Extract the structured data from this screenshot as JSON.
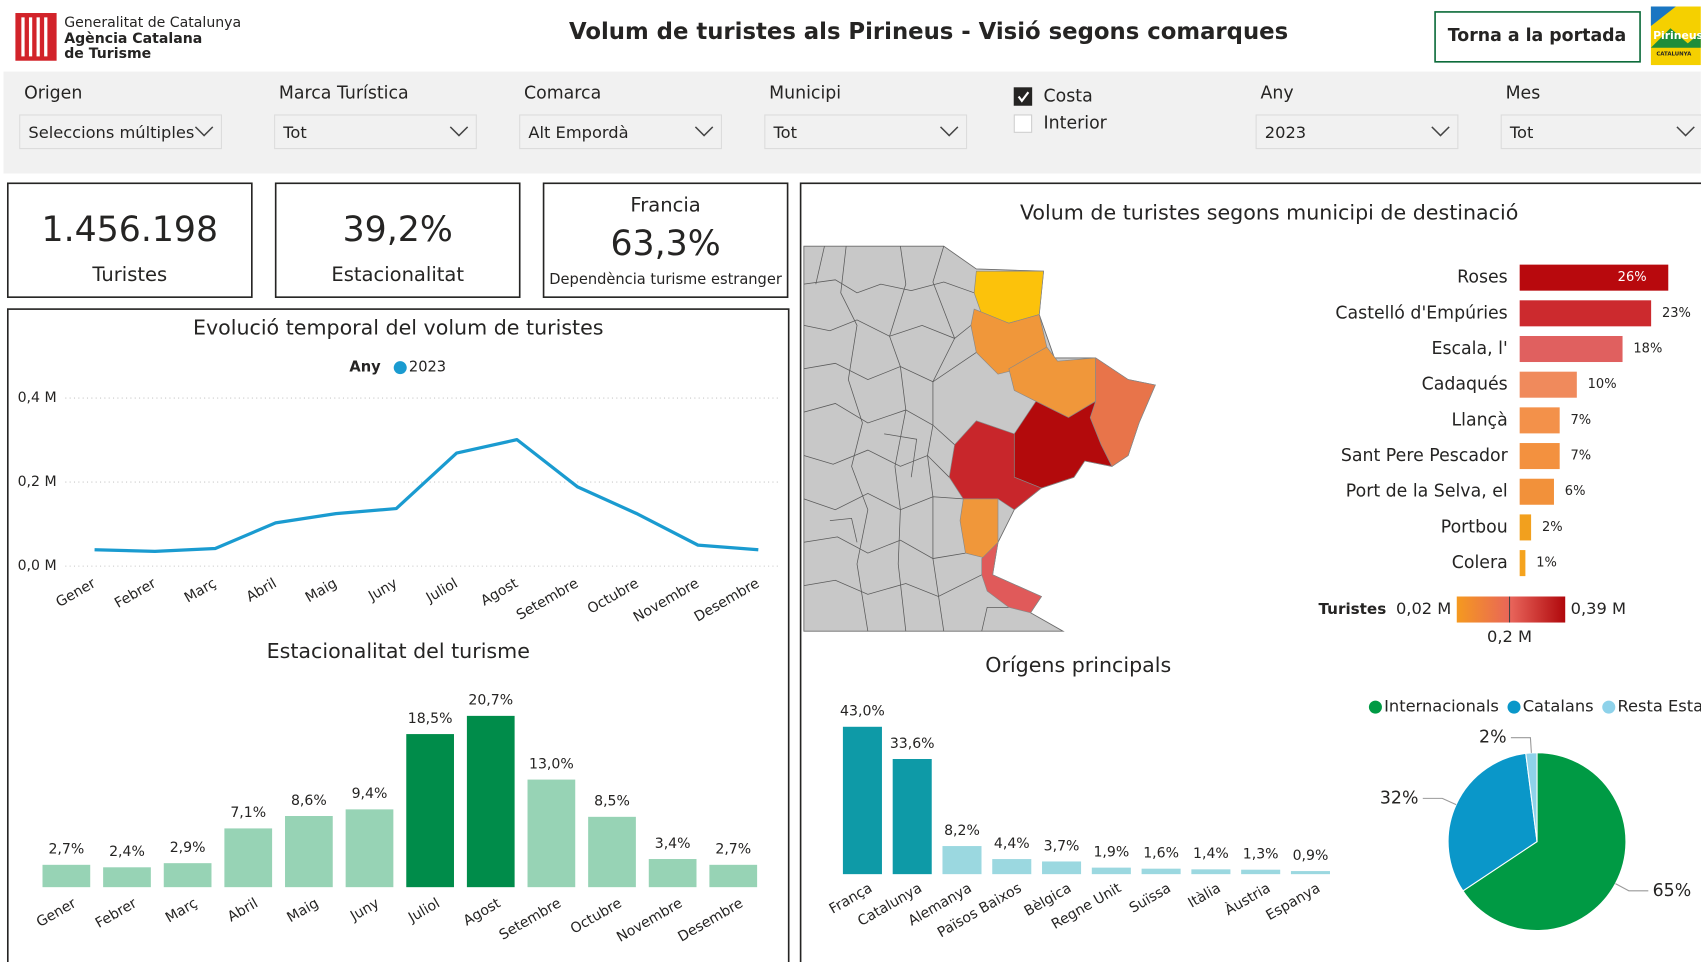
{
  "header": {
    "org_line1": "Generalitat de Catalunya",
    "org_line2": "Agència Catalana",
    "org_line3": "de Turisme",
    "title": "Volum de turistes als Pirineus - Visió segons comarques",
    "button": "Torna a la portada",
    "logo_text": "Pirineus",
    "logo_subtext": "CATALUNYA"
  },
  "filters": [
    {
      "label": "Origen",
      "value": "Seleccions múltiples"
    },
    {
      "label": "Marca Turística",
      "value": "Tot"
    },
    {
      "label": "Comarca",
      "value": "Alt Empordà"
    },
    {
      "label": "Municipi",
      "value": "Tot"
    },
    {
      "label": "Any",
      "value": "2023"
    },
    {
      "label": "Mes",
      "value": "Tot"
    }
  ],
  "checkboxes": [
    {
      "label": "Costa",
      "checked": true
    },
    {
      "label": "Interior",
      "checked": false
    }
  ],
  "kpis": [
    {
      "value": "1.456.198",
      "label": "Turistes"
    },
    {
      "value": "39,2%",
      "label": "Estacionalitat"
    },
    {
      "heading": "Francia",
      "value": "63,3%",
      "label": "Dependència turisme estranger"
    }
  ],
  "chart_data": [
    {
      "type": "line",
      "title": "Evolució temporal del volum de turistes",
      "legend_title": "Any",
      "categories": [
        "Gener",
        "Febrer",
        "Març",
        "Abril",
        "Maig",
        "Juny",
        "Juliol",
        "Agost",
        "Setembre",
        "Octubre",
        "Novembre",
        "Desembre"
      ],
      "series": [
        {
          "name": "2023",
          "color": "#1a9bd0",
          "values": [
            0.039,
            0.035,
            0.042,
            0.103,
            0.125,
            0.137,
            0.269,
            0.301,
            0.189,
            0.124,
            0.05,
            0.039
          ]
        }
      ],
      "ylim": [
        0,
        0.4
      ],
      "yticks": [
        {
          "value": 0,
          "label": "0,0 M"
        },
        {
          "value": 0.2,
          "label": "0,2 M"
        },
        {
          "value": 0.4,
          "label": "0,4 M"
        }
      ],
      "grid": true
    },
    {
      "type": "bar",
      "title": "Estacionalitat del turisme",
      "categories": [
        "Gener",
        "Febrer",
        "Març",
        "Abril",
        "Maig",
        "Juny",
        "Juliol",
        "Agost",
        "Setembre",
        "Octubre",
        "Novembre",
        "Desembre"
      ],
      "values": [
        2.7,
        2.4,
        2.9,
        7.1,
        8.6,
        9.4,
        18.5,
        20.7,
        13.0,
        8.5,
        3.4,
        2.7
      ],
      "value_labels": [
        "2,7%",
        "2,4%",
        "2,9%",
        "7,1%",
        "8,6%",
        "9,4%",
        "18,5%",
        "20,7%",
        "13,0%",
        "8,5%",
        "3,4%",
        "2,7%"
      ],
      "colors": [
        "#97d3b5",
        "#97d3b5",
        "#97d3b5",
        "#97d3b5",
        "#97d3b5",
        "#97d3b5",
        "#008c4a",
        "#008c4a",
        "#97d3b5",
        "#97d3b5",
        "#97d3b5",
        "#97d3b5"
      ]
    },
    {
      "type": "hbar",
      "title": "Volum de turistes segons municipi de destinació",
      "categories": [
        "Roses",
        "Castelló d'Empúries",
        "Escala, l'",
        "Cadaqués",
        "Llançà",
        "Sant Pere Pescador",
        "Port de la Selva, el",
        "Portbou",
        "Colera"
      ],
      "values": [
        26,
        23,
        18,
        10,
        7,
        7,
        6,
        2,
        1
      ],
      "value_labels": [
        "26%",
        "23%",
        "18%",
        "10%",
        "7%",
        "7%",
        "6%",
        "2%",
        "1%"
      ],
      "colors": [
        "#b8090d",
        "#cc2a2e",
        "#e0605f",
        "#f08a5c",
        "#f3914a",
        "#f3913f",
        "#f2913a",
        "#f2a01e",
        "#f5a31d"
      ],
      "colorscale_title": "Turistes",
      "colorscale": [
        {
          "value": 0.02,
          "label": "0,02 M"
        },
        {
          "value": 0.2,
          "label": "0,2 M"
        },
        {
          "value": 0.39,
          "label": "0,39 M"
        }
      ]
    },
    {
      "type": "bar",
      "title": "Orígens principals",
      "categories": [
        "França",
        "Catalunya",
        "Alemanya",
        "Països Baixos",
        "Bèlgica",
        "Regne Unit",
        "Suïssa",
        "Itàlia",
        "Àustria",
        "Espanya"
      ],
      "values": [
        43.0,
        33.6,
        8.2,
        4.4,
        3.7,
        1.9,
        1.6,
        1.4,
        1.3,
        0.9
      ],
      "value_labels": [
        "43,0%",
        "33,6%",
        "8,2%",
        "4,4%",
        "3,7%",
        "1,9%",
        "1,6%",
        "1,4%",
        "1,3%",
        "0,9%"
      ],
      "colors": [
        "#0e9aa7",
        "#0e9aa7",
        "#9bd8e0",
        "#9bd8e0",
        "#9bd8e0",
        "#9bd8e0",
        "#9bd8e0",
        "#9bd8e0",
        "#9bd8e0",
        "#9bd8e0"
      ]
    },
    {
      "type": "pie",
      "categories": [
        "Internacionals",
        "Catalans",
        "Resta Estat"
      ],
      "values": [
        65,
        32,
        2
      ],
      "value_labels": [
        "65%",
        "32%",
        "2%"
      ],
      "colors": [
        "#009a44",
        "#0a97c9",
        "#8ed2ea"
      ]
    }
  ]
}
